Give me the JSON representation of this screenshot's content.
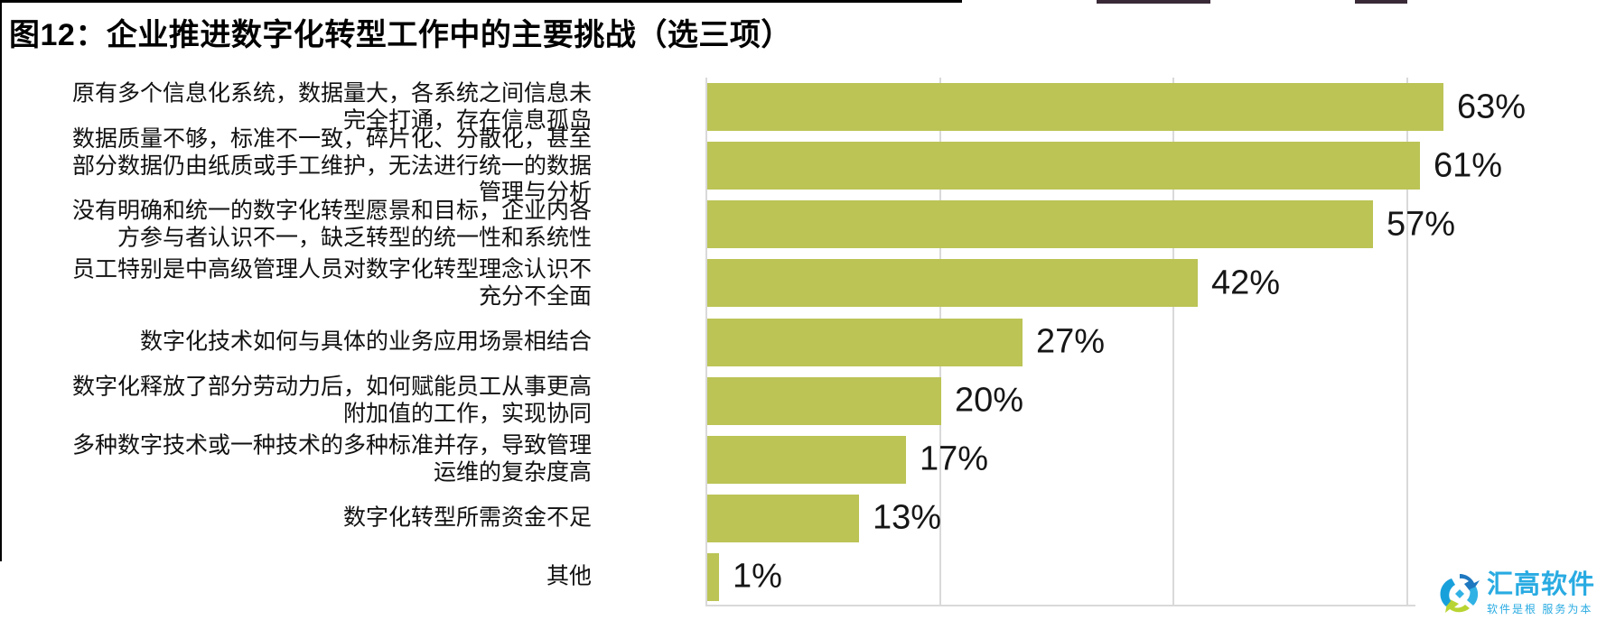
{
  "title": "图12：企业推进数字化转型工作中的主要挑战（选三项）",
  "chart_data": {
    "type": "bar",
    "orientation": "horizontal",
    "title": "图12：企业推进数字化转型工作中的主要挑战（选三项）",
    "categories": [
      "原有多个信息化系统，数据量大，各系统之间信息未\n完全打通，存在信息孤岛",
      "数据质量不够，标准不一致，碎片化、分散化，甚至\n部分数据仍由纸质或手工维护，无法进行统一的数据\n管理与分析",
      "没有明确和统一的数字化转型愿景和目标，企业内各\n方参与者认识不一，缺乏转型的统一性和系统性",
      "员工特别是中高级管理人员对数字化转型理念认识不\n充分不全面",
      "数字化技术如何与具体的业务应用场景相结合",
      "数字化释放了部分劳动力后，如何赋能员工从事更高\n附加值的工作，实现协同",
      "多种数字技术或一种技术的多种标准并存，导致管理\n运维的复杂度高",
      "数字化转型所需资金不足",
      "其他"
    ],
    "values": [
      63,
      61,
      57,
      42,
      27,
      20,
      17,
      13,
      1
    ],
    "value_labels": [
      "63%",
      "61%",
      "57%",
      "42%",
      "27%",
      "20%",
      "17%",
      "13%",
      "1%"
    ],
    "xlim": [
      0,
      76
    ],
    "gridlines_percent": [
      20,
      40,
      60
    ],
    "grid": true,
    "legend": false,
    "bar_color": "#bbc455",
    "gridline_color": "#d9d9d9",
    "value_label_color": "#161616"
  },
  "watermark": {
    "brand": "汇高软件",
    "tagline": "软件是根  服务为本",
    "brand_color": "#29abe2",
    "icon": "circular-arrows-pinwheel",
    "icon_colors": [
      "#1e78c0",
      "#31b2e5",
      "#b8d432",
      "#18a0db"
    ]
  }
}
